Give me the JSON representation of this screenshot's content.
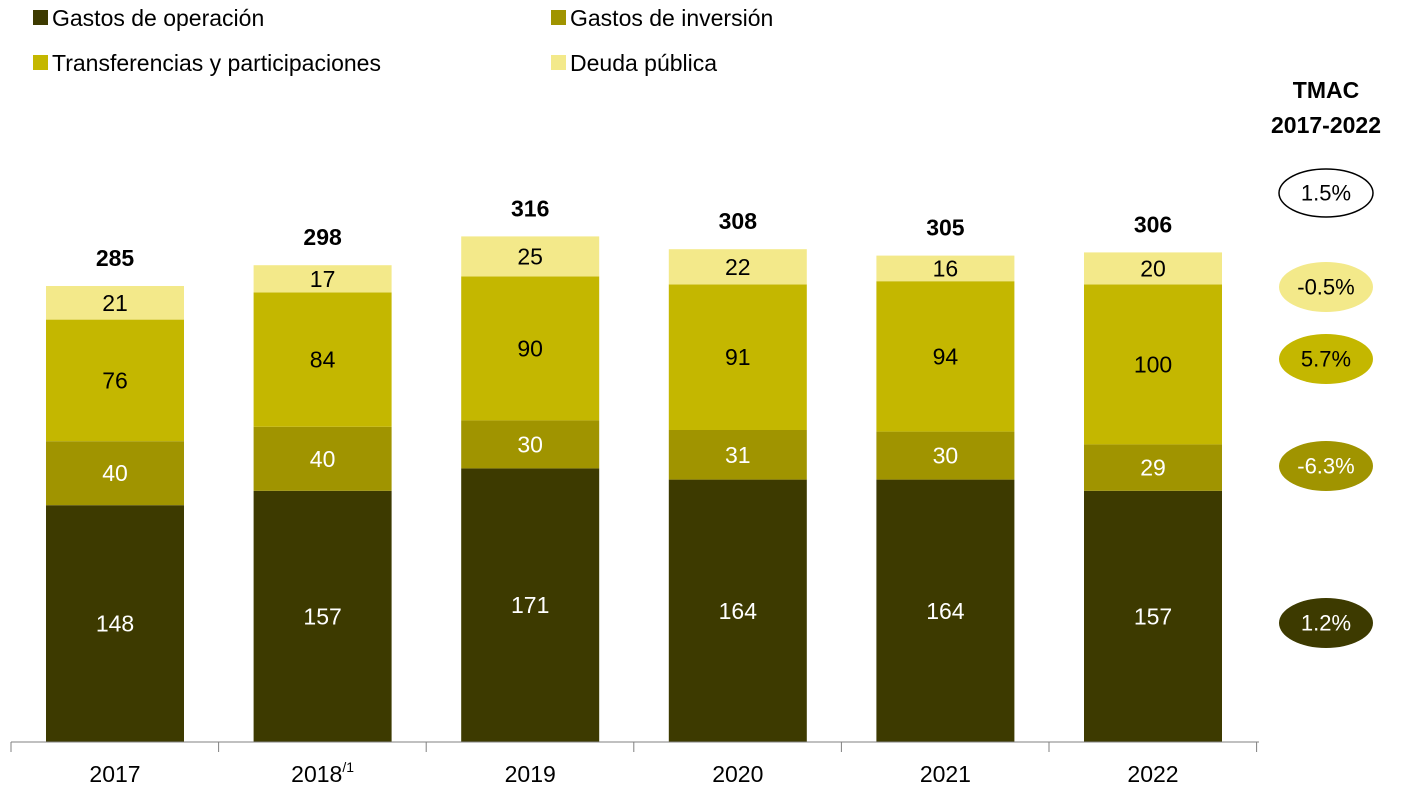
{
  "chart_data": {
    "type": "bar",
    "stacked": true,
    "categories": [
      "2017",
      "2018",
      "2019",
      "2020",
      "2021",
      "2022"
    ],
    "category_notes": [
      "",
      "/1",
      "",
      "",
      "",
      ""
    ],
    "series": [
      {
        "name": "Gastos de operación",
        "color": "#3d3a00",
        "label_color": "#ffffff",
        "values": [
          148,
          157,
          171,
          164,
          164,
          157
        ]
      },
      {
        "name": "Gastos de inversión",
        "color": "#a09400",
        "label_color": "#ffffff",
        "values": [
          40,
          40,
          30,
          31,
          30,
          29
        ]
      },
      {
        "name": "Transferencias y participaciones",
        "color": "#c4b700",
        "label_color": "#000000",
        "values": [
          76,
          84,
          90,
          91,
          94,
          100
        ]
      },
      {
        "name": "Deuda pública",
        "color": "#f3e98a",
        "label_color": "#000000",
        "values": [
          21,
          17,
          25,
          22,
          16,
          20
        ]
      }
    ],
    "series_label_display": [
      [
        "148",
        "157",
        "171",
        "164",
        "164",
        "157"
      ],
      [
        "40",
        "40",
        "30",
        "31",
        "30",
        "29"
      ],
      [
        "76",
        "84",
        "90",
        "91",
        "94",
        "100"
      ],
      [
        "21",
        "17",
        "25",
        "22",
        "16",
        "20"
      ]
    ],
    "totals": [
      285,
      298,
      316,
      308,
      305,
      306
    ],
    "ylim": [
      0,
      330
    ],
    "grid": false,
    "legend": "top-left",
    "tmac": {
      "title_line1": "TMAC",
      "title_line2": "2017-2022",
      "total": {
        "label": "1.5%",
        "fill": "#ffffff",
        "text_color": "#000000",
        "outline": "#000000"
      },
      "series": [
        {
          "series": "Gastos de operación",
          "label": "1.2%",
          "fill": "#3d3a00",
          "text_color": "#ffffff"
        },
        {
          "series": "Gastos de inversión",
          "label": "-6.3%",
          "fill": "#a09400",
          "text_color": "#ffffff"
        },
        {
          "series": "Transferencias y participaciones",
          "label": "5.7%",
          "fill": "#c4b700",
          "text_color": "#000000"
        },
        {
          "series": "Deuda pública",
          "label": "-0.5%",
          "fill": "#f3e98a",
          "text_color": "#000000"
        }
      ]
    }
  }
}
